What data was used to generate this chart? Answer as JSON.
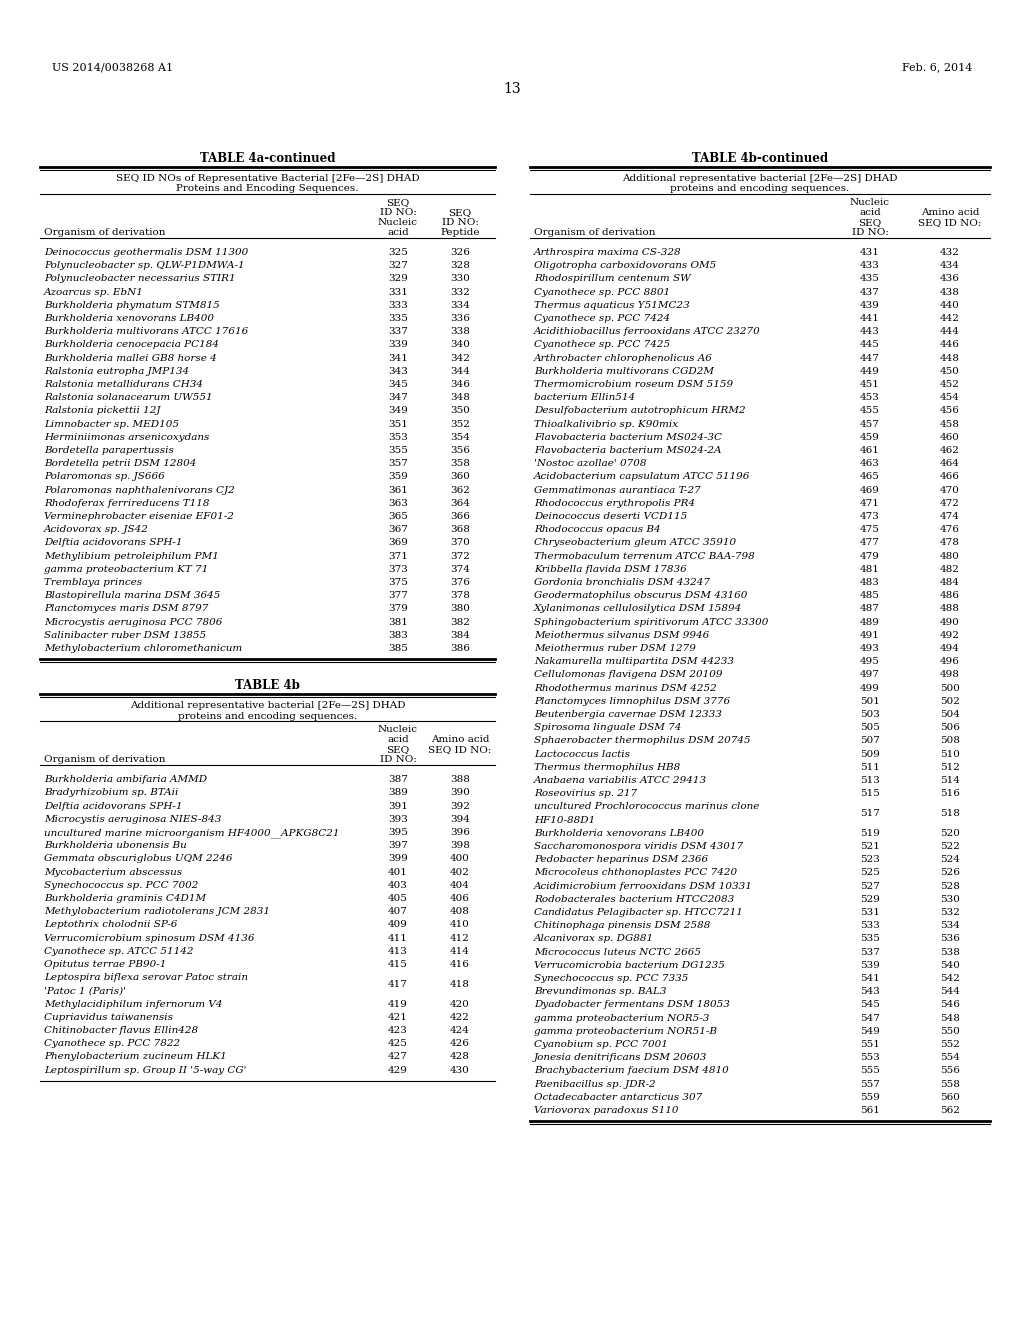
{
  "page_number": "13",
  "patent_left": "US 2014/0038268 A1",
  "patent_right": "Feb. 6, 2014",
  "table4a_title": "TABLE 4a-continued",
  "table4a_subtitle": "SEQ ID NOs of Representative Bacterial [2Fe—2S] DHAD\nProteins and Encoding Sequences.",
  "table4a_rows": [
    [
      "Deinococcus geothermalis DSM 11300",
      "325",
      "326"
    ],
    [
      "Polynucleobacter sp. QLW-P1DMWA-1",
      "327",
      "328"
    ],
    [
      "Polynucleobacter necessarius STIR1",
      "329",
      "330"
    ],
    [
      "Azoarcus sp. EbN1",
      "331",
      "332"
    ],
    [
      "Burkholderia phymatum STM815",
      "333",
      "334"
    ],
    [
      "Burkholderia xenovorans LB400",
      "335",
      "336"
    ],
    [
      "Burkholderia multivorans ATCC 17616",
      "337",
      "338"
    ],
    [
      "Burkholderia cenocepacia PC184",
      "339",
      "340"
    ],
    [
      "Burkholderia mallei GB8 horse 4",
      "341",
      "342"
    ],
    [
      "Ralstonia eutropha JMP134",
      "343",
      "344"
    ],
    [
      "Ralstonia metallidurans CH34",
      "345",
      "346"
    ],
    [
      "Ralstonia solanacearum UW551",
      "347",
      "348"
    ],
    [
      "Ralstonia pickettii 12J",
      "349",
      "350"
    ],
    [
      "Limnobacter sp. MED105",
      "351",
      "352"
    ],
    [
      "Herminiimonas arsenicoxydans",
      "353",
      "354"
    ],
    [
      "Bordetella parapertussis",
      "355",
      "356"
    ],
    [
      "Bordetella petrii DSM 12804",
      "357",
      "358"
    ],
    [
      "Polaromonas sp. JS666",
      "359",
      "360"
    ],
    [
      "Polaromonas naphthalenivorans CJ2",
      "361",
      "362"
    ],
    [
      "Rhodoferax ferrireducens T118",
      "363",
      "364"
    ],
    [
      "Verminephrobacter eiseniae EF01-2",
      "365",
      "366"
    ],
    [
      "Acidovorax sp. JS42",
      "367",
      "368"
    ],
    [
      "Delftia acidovorans SPH-1",
      "369",
      "370"
    ],
    [
      "Methylibium petroleiphilum PM1",
      "371",
      "372"
    ],
    [
      "gamma proteobacterium KT 71",
      "373",
      "374"
    ],
    [
      "Tremblaya princes",
      "375",
      "376"
    ],
    [
      "Blastopirellula marina DSM 3645",
      "377",
      "378"
    ],
    [
      "Planctomyces maris DSM 8797",
      "379",
      "380"
    ],
    [
      "Microcystis aeruginosa PCC 7806",
      "381",
      "382"
    ],
    [
      "Salinibacter ruber DSM 13855",
      "383",
      "384"
    ],
    [
      "Methylobacterium chloromethanicum",
      "385",
      "386"
    ]
  ],
  "table4b_main_title": "TABLE 4b",
  "table4b_main_subtitle": "Additional representative bacterial [2Fe—2S] DHAD\nproteins and encoding sequences.",
  "table4b_rows": [
    [
      "Burkholderia ambifaria AMMD",
      "387",
      "388"
    ],
    [
      "Bradyrhizobium sp. BTAii",
      "389",
      "390"
    ],
    [
      "Delftia acidovorans SPH-1",
      "391",
      "392"
    ],
    [
      "Microcystis aeruginosa NIES-843",
      "393",
      "394"
    ],
    [
      "uncultured marine microorganism HF4000__APKG8C21",
      "395",
      "396"
    ],
    [
      "Burkholderia ubonensis Bu",
      "397",
      "398"
    ],
    [
      "Gemmata obscuriglobus UQM 2246",
      "399",
      "400"
    ],
    [
      "Mycobacterium abscessus",
      "401",
      "402"
    ],
    [
      "Synechococcus sp. PCC 7002",
      "403",
      "404"
    ],
    [
      "Burkholderia graminis C4D1M",
      "405",
      "406"
    ],
    [
      "Methylobacterium radiotolerans JCM 2831",
      "407",
      "408"
    ],
    [
      "Leptothrix cholodnii SP-6",
      "409",
      "410"
    ],
    [
      "Verrucomicrobium spinosum DSM 4136",
      "411",
      "412"
    ],
    [
      "Cyanothece sp. ATCC 51142",
      "413",
      "414"
    ],
    [
      "Opitutus terrae PB90-1",
      "415",
      "416"
    ],
    [
      "Leptospira biflexa serovar Patoc strain\n'Patoc 1 (Paris)'",
      "417",
      "418"
    ],
    [
      "Methylacidiphilum infernorum V4",
      "419",
      "420"
    ],
    [
      "Cupriavidus taiwanensis",
      "421",
      "422"
    ],
    [
      "Chitinobacter flavus Ellin428",
      "423",
      "424"
    ],
    [
      "Cyanothece sp. PCC 7822",
      "425",
      "426"
    ],
    [
      "Phenylobacterium zucineum HLK1",
      "427",
      "428"
    ],
    [
      "Leptospirillum sp. Group II '5-way CG'",
      "429",
      "430"
    ]
  ],
  "table4b_cont_title": "TABLE 4b-continued",
  "table4b_cont_subtitle": "Additional representative bacterial [2Fe—2S] DHAD\nproteins and encoding sequences.",
  "table4b_cont_rows": [
    [
      "Arthrospira maxima CS-328",
      "431",
      "432"
    ],
    [
      "Oligotropha carboxidovorans OM5",
      "433",
      "434"
    ],
    [
      "Rhodospirillum centenum SW",
      "435",
      "436"
    ],
    [
      "Cyanothece sp. PCC 8801",
      "437",
      "438"
    ],
    [
      "Thermus aquaticus Y51MC23",
      "439",
      "440"
    ],
    [
      "Cyanothece sp. PCC 7424",
      "441",
      "442"
    ],
    [
      "Acidithiobacillus ferrooxidans ATCC 23270",
      "443",
      "444"
    ],
    [
      "Cyanothece sp. PCC 7425",
      "445",
      "446"
    ],
    [
      "Arthrobacter chlorophenolicus A6",
      "447",
      "448"
    ],
    [
      "Burkholderia multivorans CGD2M",
      "449",
      "450"
    ],
    [
      "Thermomicrobium roseum DSM 5159",
      "451",
      "452"
    ],
    [
      "bacterium Ellin514",
      "453",
      "454"
    ],
    [
      "Desulfobacterium autotrophicum HRM2",
      "455",
      "456"
    ],
    [
      "Thioalkalivibrio sp. K90mix",
      "457",
      "458"
    ],
    [
      "Flavobacteria bacterium MS024-3C",
      "459",
      "460"
    ],
    [
      "Flavobacteria bacterium MS024-2A",
      "461",
      "462"
    ],
    [
      "'Nostoc azollae' 0708",
      "463",
      "464"
    ],
    [
      "Acidobacterium capsulatum ATCC 51196",
      "465",
      "466"
    ],
    [
      "Gemmatimonas aurantiaca T-27",
      "469",
      "470"
    ],
    [
      "Rhodococcus erythropolis PR4",
      "471",
      "472"
    ],
    [
      "Deinococcus deserti VCD115",
      "473",
      "474"
    ],
    [
      "Rhodococcus opacus B4",
      "475",
      "476"
    ],
    [
      "Chryseobacterium gleum ATCC 35910",
      "477",
      "478"
    ],
    [
      "Thermobaculum terrenum ATCC BAA-798",
      "479",
      "480"
    ],
    [
      "Kribbella flavida DSM 17836",
      "481",
      "482"
    ],
    [
      "Gordonia bronchialis DSM 43247",
      "483",
      "484"
    ],
    [
      "Geodermatophilus obscurus DSM 43160",
      "485",
      "486"
    ],
    [
      "Xylanimonas cellulosilytica DSM 15894",
      "487",
      "488"
    ],
    [
      "Sphingobacterium spiritivorum ATCC 33300",
      "489",
      "490"
    ],
    [
      "Meiothermus silvanus DSM 9946",
      "491",
      "492"
    ],
    [
      "Meiothermus ruber DSM 1279",
      "493",
      "494"
    ],
    [
      "Nakamurella multipartita DSM 44233",
      "495",
      "496"
    ],
    [
      "Cellulomonas flavigena DSM 20109",
      "497",
      "498"
    ],
    [
      "Rhodothermus marinus DSM 4252",
      "499",
      "500"
    ],
    [
      "Planctomyces limnophilus DSM 3776",
      "501",
      "502"
    ],
    [
      "Beutenbergia cavernae DSM 12333",
      "503",
      "504"
    ],
    [
      "Spirosoma linguale DSM 74",
      "505",
      "506"
    ],
    [
      "Sphaerobacter thermophilus DSM 20745",
      "507",
      "508"
    ],
    [
      "Lactococcus lactis",
      "509",
      "510"
    ],
    [
      "Thermus thermophilus HB8",
      "511",
      "512"
    ],
    [
      "Anabaena variabilis ATCC 29413",
      "513",
      "514"
    ],
    [
      "Roseovirius sp. 217",
      "515",
      "516"
    ],
    [
      "uncultured Prochlorococcus marinus clone\nHF10-88D1",
      "517",
      "518"
    ],
    [
      "Burkholderia xenovorans LB400",
      "519",
      "520"
    ],
    [
      "Saccharomonospora viridis DSM 43017",
      "521",
      "522"
    ],
    [
      "Pedobacter heparinus DSM 2366",
      "523",
      "524"
    ],
    [
      "Microcoleus chthonoplastes PCC 7420",
      "525",
      "526"
    ],
    [
      "Acidimicrobium ferrooxidans DSM 10331",
      "527",
      "528"
    ],
    [
      "Rodobacterales bacterium HTCC2083",
      "529",
      "530"
    ],
    [
      "Candidatus Pelagibacter sp. HTCC7211",
      "531",
      "532"
    ],
    [
      "Chitinophaga pinensis DSM 2588",
      "533",
      "534"
    ],
    [
      "Alcanivorax sp. DG881",
      "535",
      "536"
    ],
    [
      "Micrococcus luteus NCTC 2665",
      "537",
      "538"
    ],
    [
      "Verrucomicrobia bacterium DG1235",
      "539",
      "540"
    ],
    [
      "Synechococcus sp. PCC 7335",
      "541",
      "542"
    ],
    [
      "Brevundimonas sp. BAL3",
      "543",
      "544"
    ],
    [
      "Dyadobacter fermentans DSM 18053",
      "545",
      "546"
    ],
    [
      "gamma proteobacterium NOR5-3",
      "547",
      "548"
    ],
    [
      "gamma proteobacterium NOR51-B",
      "549",
      "550"
    ],
    [
      "Cyanobium sp. PCC 7001",
      "551",
      "552"
    ],
    [
      "Jonesia denitrificans DSM 20603",
      "553",
      "554"
    ],
    [
      "Brachybacterium faecium DSM 4810",
      "555",
      "556"
    ],
    [
      "Paenibacillus sp. JDR-2",
      "557",
      "558"
    ],
    [
      "Octadecabacter antarcticus 307",
      "559",
      "560"
    ],
    [
      "Variovorax paradoxus S110",
      "561",
      "562"
    ]
  ]
}
